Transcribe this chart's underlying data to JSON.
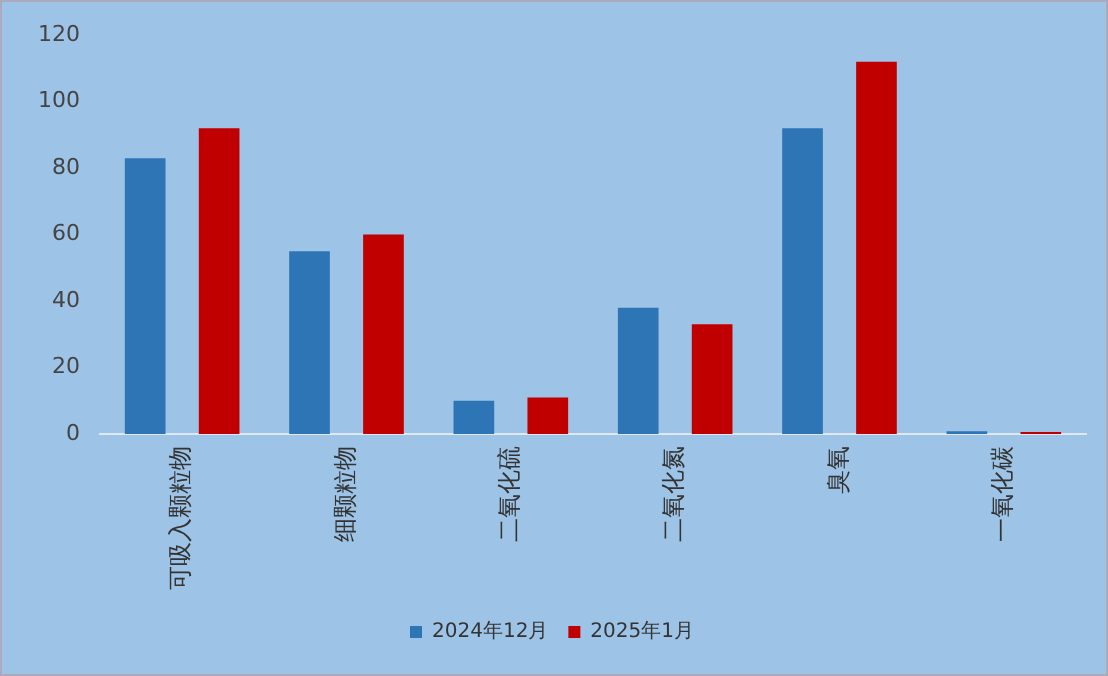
{
  "chart_data": {
    "type": "bar",
    "categories": [
      "可吸入颗粒物",
      "细颗粒物",
      "二氧化硫",
      "二氧化氮",
      "臭氧",
      "一氧化碳"
    ],
    "series": [
      {
        "name": "2024年12月",
        "color": "#2e75b6",
        "values": [
          83,
          55,
          10,
          38,
          92,
          0.8
        ]
      },
      {
        "name": "2025年1月",
        "color": "#c00000",
        "values": [
          92,
          60,
          11,
          33,
          112,
          0.6
        ]
      }
    ],
    "ylim": [
      0,
      120
    ],
    "yticks": [
      0,
      20,
      40,
      60,
      80,
      100,
      120
    ],
    "grid": false,
    "legend": "bottom"
  }
}
